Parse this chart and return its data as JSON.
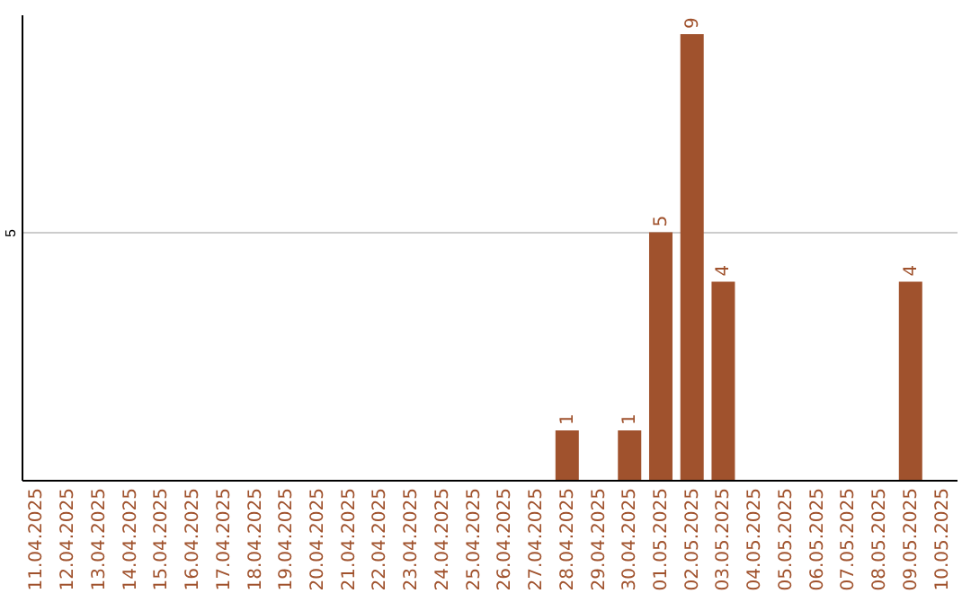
{
  "chart_data": {
    "type": "bar",
    "categories": [
      "11.04.2025",
      "12.04.2025",
      "13.04.2025",
      "14.04.2025",
      "15.04.2025",
      "16.04.2025",
      "17.04.2025",
      "18.04.2025",
      "19.04.2025",
      "20.04.2025",
      "21.04.2025",
      "22.04.2025",
      "23.04.2025",
      "24.04.2025",
      "25.04.2025",
      "26.04.2025",
      "27.04.2025",
      "28.04.2025",
      "29.04.2025",
      "30.04.2025",
      "01.05.2025",
      "02.05.2025",
      "03.05.2025",
      "04.05.2025",
      "05.05.2025",
      "06.05.2025",
      "07.05.2025",
      "08.05.2025",
      "09.05.2025",
      "10.05.2025"
    ],
    "values": [
      null,
      null,
      null,
      null,
      null,
      null,
      null,
      null,
      null,
      null,
      null,
      null,
      null,
      null,
      null,
      null,
      null,
      1,
      null,
      1,
      5,
      9,
      4,
      null,
      null,
      null,
      null,
      null,
      4,
      null
    ],
    "color": "#a0522d",
    "ylim": [
      0,
      9.4
    ],
    "yticks": [
      5
    ],
    "grid": "y",
    "data_labels": true
  }
}
